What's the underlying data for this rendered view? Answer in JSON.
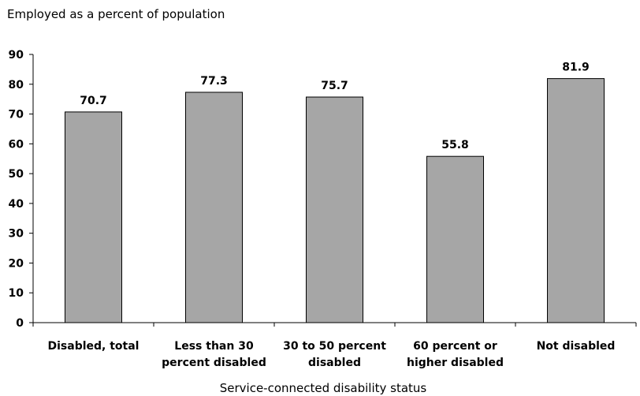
{
  "chart_data": {
    "type": "bar",
    "title": "",
    "ylabel": "Employed as a percent of population",
    "xlabel": "Service-connected disability status",
    "categories": [
      [
        "Disabled, total"
      ],
      [
        "Less than 30",
        "percent disabled"
      ],
      [
        "30 to 50 percent",
        "disabled"
      ],
      [
        "60 percent or",
        "higher disabled"
      ],
      [
        "Not disabled"
      ]
    ],
    "values": [
      70.7,
      77.3,
      75.7,
      55.8,
      81.9
    ],
    "value_labels": [
      "70.7",
      "77.3",
      "75.7",
      "55.8",
      "81.9"
    ],
    "ylim": [
      0,
      90
    ],
    "yticks": [
      "0",
      "10",
      "20",
      "30",
      "40",
      "50",
      "60",
      "70",
      "80",
      "90"
    ],
    "grid": false,
    "legend": "none",
    "colors": {
      "bar_fill": "#a6a6a6",
      "bar_stroke": "#000000",
      "axis": "#000000"
    }
  }
}
